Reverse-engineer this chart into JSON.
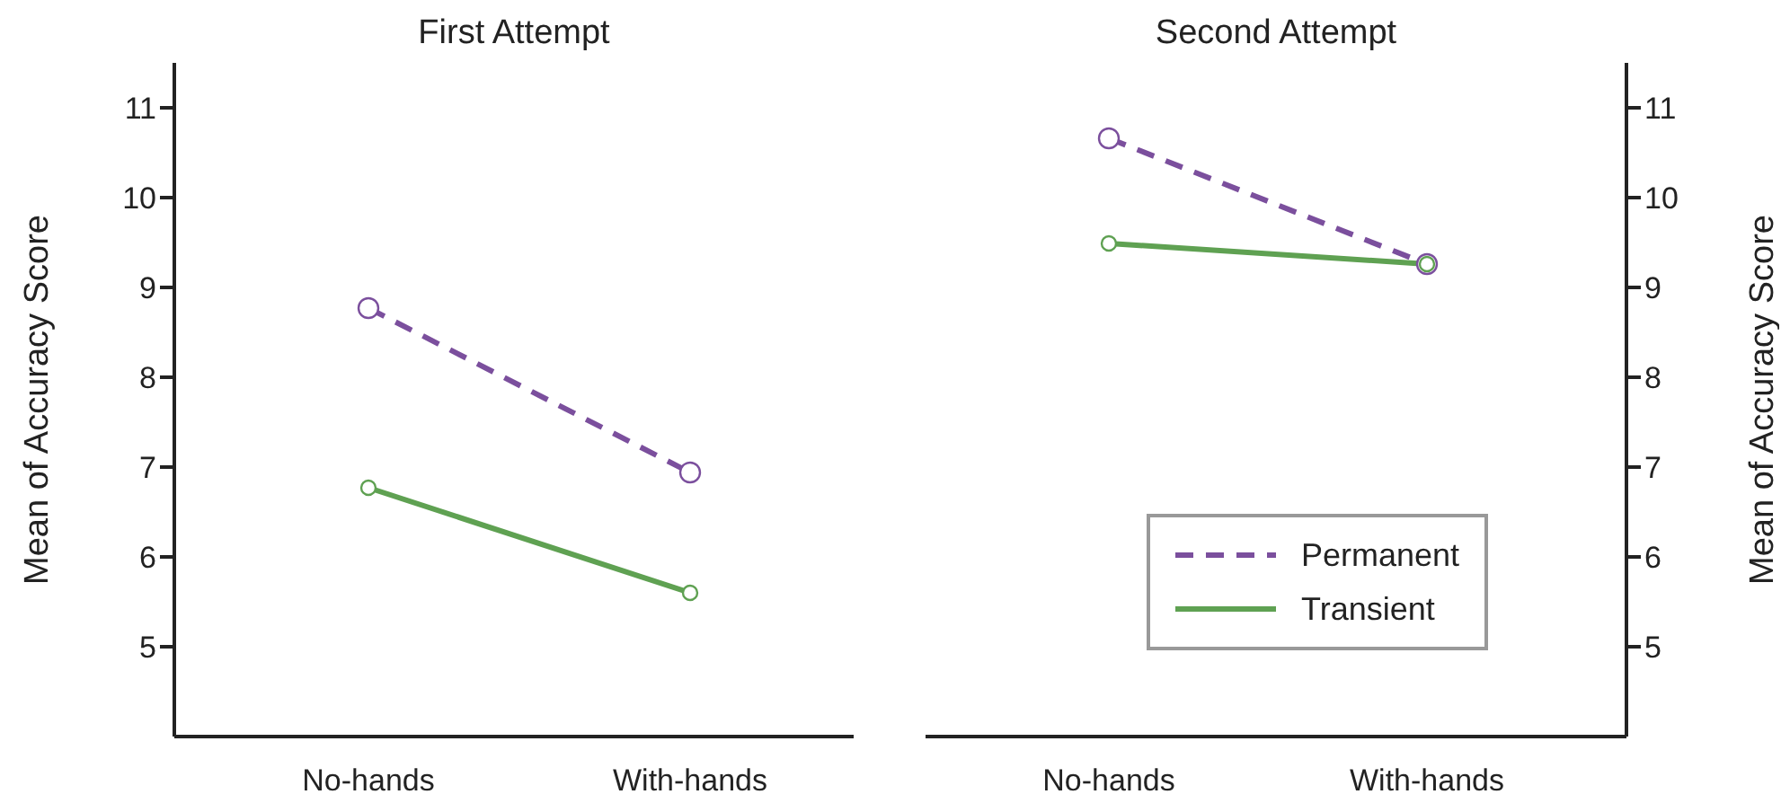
{
  "chart_data": [
    {
      "type": "line",
      "title": "First Attempt",
      "ylabel": "Mean of Accuracy Score",
      "categories": [
        "No-hands",
        "With-hands"
      ],
      "ylim": [
        4,
        11.5
      ],
      "yticks": [
        5,
        6,
        7,
        8,
        9,
        10,
        11
      ],
      "marker": "circle",
      "grid": false,
      "legend": false,
      "series": [
        {
          "color": "#7b4f9d",
          "line_style": "dashed",
          "values": [
            8.77,
            6.94
          ]
        },
        {
          "color": "#5fa152",
          "line_style": "solid",
          "values": [
            6.77,
            5.6
          ]
        }
      ]
    },
    {
      "type": "line",
      "title": "Second Attempt",
      "ylabel": "Mean of Accuracy Score",
      "categories": [
        "No-hands",
        "With-hands"
      ],
      "ylim": [
        4,
        11.5
      ],
      "yticks": [
        5,
        6,
        7,
        8,
        9,
        10,
        11
      ],
      "marker": "circle",
      "grid": false,
      "legend": "bottom right",
      "series": [
        {
          "name": "Permanent",
          "color": "#7b4f9d",
          "line_style": "dashed",
          "values": [
            10.66,
            9.26
          ]
        },
        {
          "name": "Transient",
          "color": "#5fa152",
          "line_style": "solid",
          "values": [
            9.49,
            9.26
          ]
        }
      ]
    }
  ]
}
